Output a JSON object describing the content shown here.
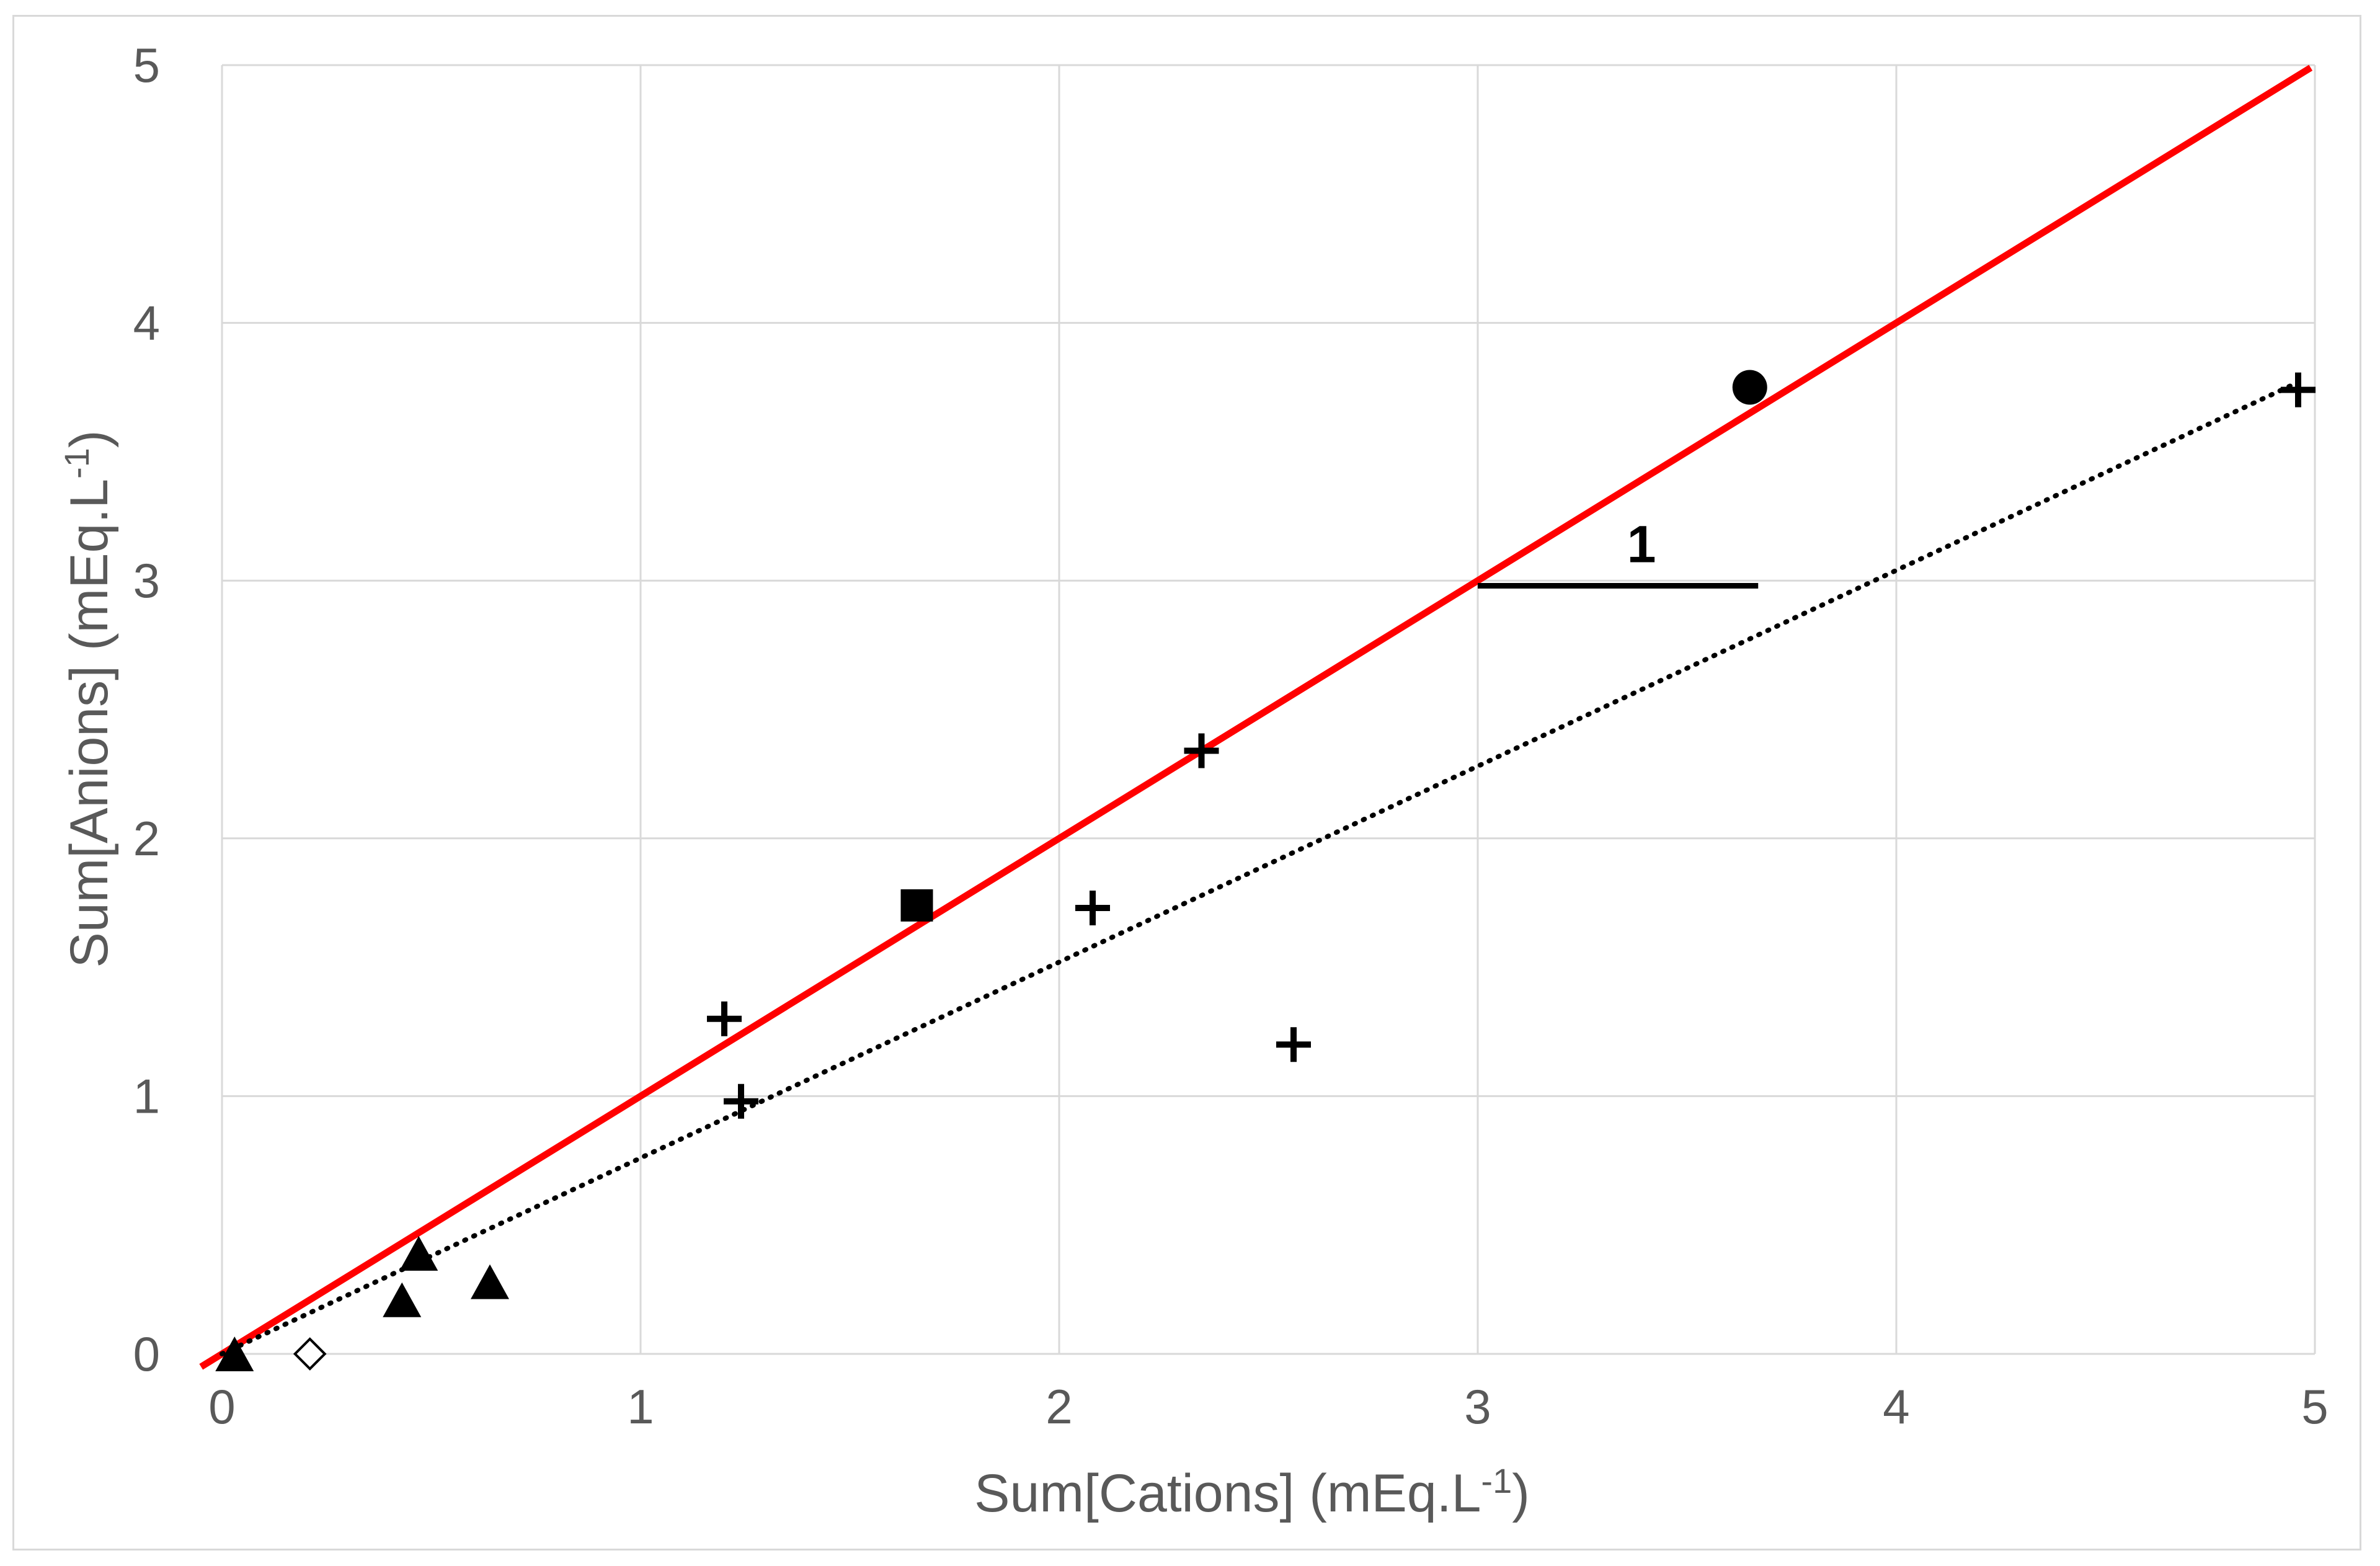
{
  "chart_data": {
    "type": "scatter",
    "title": "",
    "xlabel": "Sum[Cations] (mEq.L-1)",
    "ylabel": "Sum[Anions] (mEq.L-1)",
    "xlabel_parts": {
      "main": "Sum[Cations] (mEq.L",
      "sup": "-1",
      "end": ")"
    },
    "ylabel_parts": {
      "main": "Sum[Anions] (mEq.L",
      "sup": "-1",
      "end": ")"
    },
    "xlim": [
      0,
      5
    ],
    "ylim": [
      0,
      5
    ],
    "x_ticks": [
      "0",
      "1",
      "2",
      "3",
      "4",
      "5"
    ],
    "y_ticks": [
      "0",
      "1",
      "2",
      "3",
      "4",
      "5"
    ],
    "grid": true,
    "legend": "none",
    "series": [
      {
        "marker": "triangle",
        "color": "#000000",
        "points": [
          [
            0.03,
            0.0
          ],
          [
            0.43,
            0.21
          ],
          [
            0.47,
            0.39
          ],
          [
            0.64,
            0.28
          ]
        ]
      },
      {
        "marker": "diamond-open",
        "color": "#000000",
        "points": [
          [
            0.21,
            0.0
          ]
        ]
      },
      {
        "marker": "plus",
        "color": "#000000",
        "points": [
          [
            1.2,
            1.3
          ],
          [
            1.24,
            0.98
          ],
          [
            2.08,
            1.73
          ],
          [
            2.34,
            2.34
          ],
          [
            2.56,
            1.2
          ],
          [
            4.96,
            3.74
          ]
        ]
      },
      {
        "marker": "square",
        "color": "#000000",
        "points": [
          [
            1.66,
            1.74
          ]
        ]
      },
      {
        "marker": "circle",
        "color": "#000000",
        "points": [
          [
            3.65,
            3.75
          ]
        ]
      }
    ],
    "lines": [
      {
        "style": "solid",
        "color": "#ff0000",
        "slope": 1.0,
        "intercept": 0.0,
        "x_range": [
          -0.05,
          4.99
        ]
      },
      {
        "style": "dotted",
        "color": "#000000",
        "slope": 0.76,
        "intercept": 0.0,
        "x_range": [
          0.0,
          4.96
        ]
      }
    ],
    "annotation": {
      "text": "1",
      "segment": {
        "x": [
          3.0,
          3.67
        ],
        "y": 2.98
      }
    }
  }
}
